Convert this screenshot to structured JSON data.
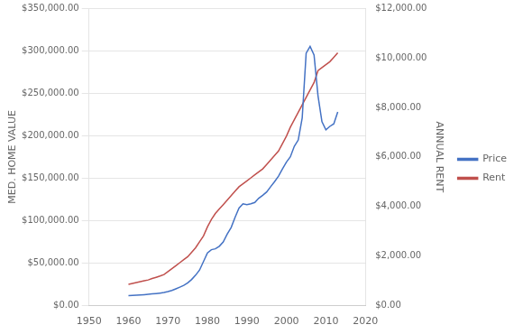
{
  "chart_data": {
    "type": "line",
    "ylabel": "MED. HOME VALUE",
    "y2label": "ANNUAL RENT",
    "x": [
      1960,
      1961,
      1962,
      1963,
      1964,
      1965,
      1966,
      1967,
      1968,
      1969,
      1970,
      1971,
      1972,
      1973,
      1974,
      1975,
      1976,
      1977,
      1978,
      1979,
      1980,
      1981,
      1982,
      1983,
      1984,
      1985,
      1986,
      1987,
      1988,
      1989,
      1990,
      1991,
      1992,
      1993,
      1994,
      1995,
      1996,
      1997,
      1998,
      1999,
      2000,
      2001,
      2002,
      2003,
      2004,
      2005,
      2006,
      2007,
      2008,
      2009,
      2010,
      2011,
      2012,
      2013
    ],
    "series": [
      {
        "name": "Price",
        "color": "#4472C4",
        "axis": "y",
        "values": [
          11900,
          12200,
          12500,
          12800,
          13100,
          13500,
          14000,
          14500,
          15000,
          15600,
          16700,
          18100,
          20000,
          22000,
          24000,
          27000,
          31000,
          36000,
          42000,
          52000,
          62200,
          66000,
          67000,
          70000,
          75000,
          84300,
          92000,
          104000,
          115000,
          120000,
          119000,
          120000,
          121500,
          126500,
          130000,
          133900,
          140000,
          146000,
          152500,
          161000,
          169000,
          175200,
          187600,
          195000,
          221000,
          297000,
          305000,
          295000,
          247000,
          216500,
          207000,
          211000,
          214000,
          228000
        ]
      },
      {
        "name": "Rent",
        "color": "#C0504D",
        "axis": "y2",
        "values": [
          864,
          900,
          936,
          972,
          1008,
          1044,
          1100,
          1150,
          1200,
          1260,
          1380,
          1500,
          1620,
          1740,
          1860,
          1980,
          2160,
          2340,
          2580,
          2820,
          3180,
          3480,
          3720,
          3900,
          4080,
          4260,
          4440,
          4620,
          4800,
          4920,
          5040,
          5160,
          5280,
          5400,
          5520,
          5700,
          5880,
          6060,
          6240,
          6540,
          6840,
          7200,
          7500,
          7800,
          8100,
          8400,
          8700,
          9000,
          9480,
          9600,
          9720,
          9840,
          10020,
          10200
        ]
      }
    ],
    "xlim": [
      1950,
      2020
    ],
    "xticks": [
      1950,
      1960,
      1970,
      1980,
      1990,
      2000,
      2010,
      2020
    ],
    "ylim": [
      0,
      350000
    ],
    "yticks": [
      {
        "value": 0,
        "label": "$0.00"
      },
      {
        "value": 50000,
        "label": "$50,000.00"
      },
      {
        "value": 100000,
        "label": "$100,000.00"
      },
      {
        "value": 150000,
        "label": "$150,000.00"
      },
      {
        "value": 200000,
        "label": "$200,000.00"
      },
      {
        "value": 250000,
        "label": "$250,000.00"
      },
      {
        "value": 300000,
        "label": "$300,000.00"
      },
      {
        "value": 350000,
        "label": "$350,000.00"
      }
    ],
    "y2lim": [
      0,
      12000
    ],
    "y2ticks": [
      {
        "value": 0,
        "label": "$0.00"
      },
      {
        "value": 2000,
        "label": "$2,000.00"
      },
      {
        "value": 4000,
        "label": "$4,000.00"
      },
      {
        "value": 6000,
        "label": "$6,000.00"
      },
      {
        "value": 8000,
        "label": "$8,000.00"
      },
      {
        "value": 10000,
        "label": "$10,000.00"
      },
      {
        "value": 12000,
        "label": "$12,000.00"
      }
    ],
    "grid": "y",
    "legend": "right"
  }
}
